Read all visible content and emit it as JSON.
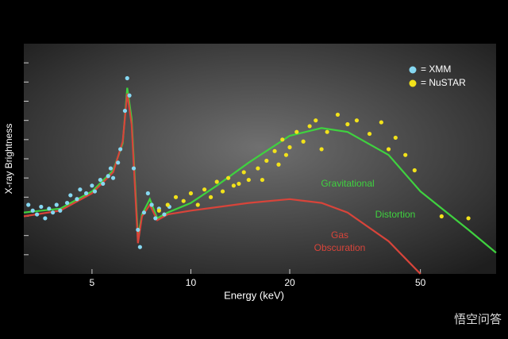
{
  "chart_data": {
    "type": "scatter",
    "x_label": "Energy (keV)",
    "y_label": "X-ray Brightness",
    "xlim": [
      3.1,
      85
    ],
    "xscale": "log",
    "xticks": [
      5,
      10,
      20,
      50
    ],
    "ylim": [
      0,
      12
    ],
    "yticks": [
      1,
      2,
      3,
      4,
      5,
      6,
      7,
      8,
      9,
      10,
      11
    ],
    "series": [
      {
        "name": "= XMM",
        "color": "#86d8f2",
        "x": [
          3.2,
          3.3,
          3.4,
          3.5,
          3.6,
          3.7,
          3.8,
          3.9,
          4.0,
          4.2,
          4.3,
          4.5,
          4.6,
          4.8,
          5.0,
          5.1,
          5.3,
          5.4,
          5.6,
          5.7,
          5.8,
          6.0,
          6.1,
          6.3,
          6.4,
          6.5,
          6.7,
          6.9,
          7.0,
          7.2,
          7.4,
          7.6,
          7.8,
          8.0,
          8.3,
          8.6
        ],
        "values": [
          3.6,
          3.3,
          3.1,
          3.5,
          2.9,
          3.4,
          3.2,
          3.6,
          3.3,
          3.7,
          4.1,
          3.9,
          4.4,
          4.2,
          4.6,
          4.3,
          4.9,
          4.7,
          5.1,
          5.5,
          5.0,
          5.8,
          6.5,
          8.5,
          10.2,
          9.3,
          5.5,
          2.3,
          1.4,
          3.2,
          4.2,
          3.6,
          2.9,
          3.4,
          3.1,
          3.5
        ]
      },
      {
        "name": "= NuSTAR",
        "color": "#f2e21a",
        "x": [
          8.0,
          8.5,
          9.0,
          9.5,
          10,
          10.5,
          11,
          11.5,
          12,
          12.5,
          13,
          13.5,
          14,
          14.5,
          15,
          16,
          16.5,
          17,
          18,
          18.5,
          19,
          19.5,
          20,
          21,
          22,
          23,
          24,
          25,
          26,
          28,
          30,
          32,
          35,
          38,
          40,
          42,
          45,
          48,
          58,
          70
        ],
        "values": [
          3.3,
          3.6,
          4.0,
          3.8,
          4.2,
          3.6,
          4.4,
          4.0,
          4.8,
          4.3,
          5.0,
          4.6,
          4.7,
          5.3,
          4.9,
          5.5,
          4.9,
          5.9,
          6.4,
          5.7,
          7.0,
          6.2,
          6.6,
          7.4,
          6.9,
          7.7,
          8.0,
          6.5,
          7.4,
          8.3,
          7.8,
          8.0,
          7.3,
          7.9,
          6.5,
          7.1,
          6.2,
          5.4,
          3.0,
          2.9
        ]
      }
    ],
    "curves": [
      {
        "color": "#3fd23f",
        "x": [
          3.1,
          4,
          5,
          5.8,
          6.2,
          6.4,
          6.6,
          6.9,
          7.1,
          7.5,
          7.9,
          8.5,
          10,
          12,
          15,
          20,
          25,
          30,
          40,
          50,
          70,
          85
        ],
        "values": [
          3.2,
          3.4,
          4.3,
          5.4,
          6.8,
          9.7,
          8.1,
          1.9,
          3.1,
          3.9,
          2.9,
          3.2,
          3.7,
          4.6,
          5.8,
          7.2,
          7.6,
          7.4,
          6.2,
          4.3,
          2.3,
          1.1
        ]
      },
      {
        "color": "#d8443a",
        "x": [
          3.1,
          4,
          5,
          5.8,
          6.2,
          6.4,
          6.6,
          6.9,
          7.1,
          7.5,
          7.9,
          8.5,
          10,
          15,
          20,
          25,
          30,
          40,
          50
        ],
        "values": [
          3.0,
          3.3,
          4.2,
          5.3,
          6.9,
          9.4,
          7.8,
          1.6,
          3.0,
          3.6,
          2.8,
          3.1,
          3.3,
          3.7,
          3.9,
          3.7,
          3.2,
          1.7,
          0
        ]
      }
    ],
    "annotations": [
      {
        "lines": [
          "Gravitational",
          "Distortion"
        ],
        "color": "#3fd23f"
      },
      {
        "lines": [
          "Gas",
          "Obscuration"
        ],
        "color": "#d8443a"
      }
    ],
    "watermark": "悟空问答"
  }
}
